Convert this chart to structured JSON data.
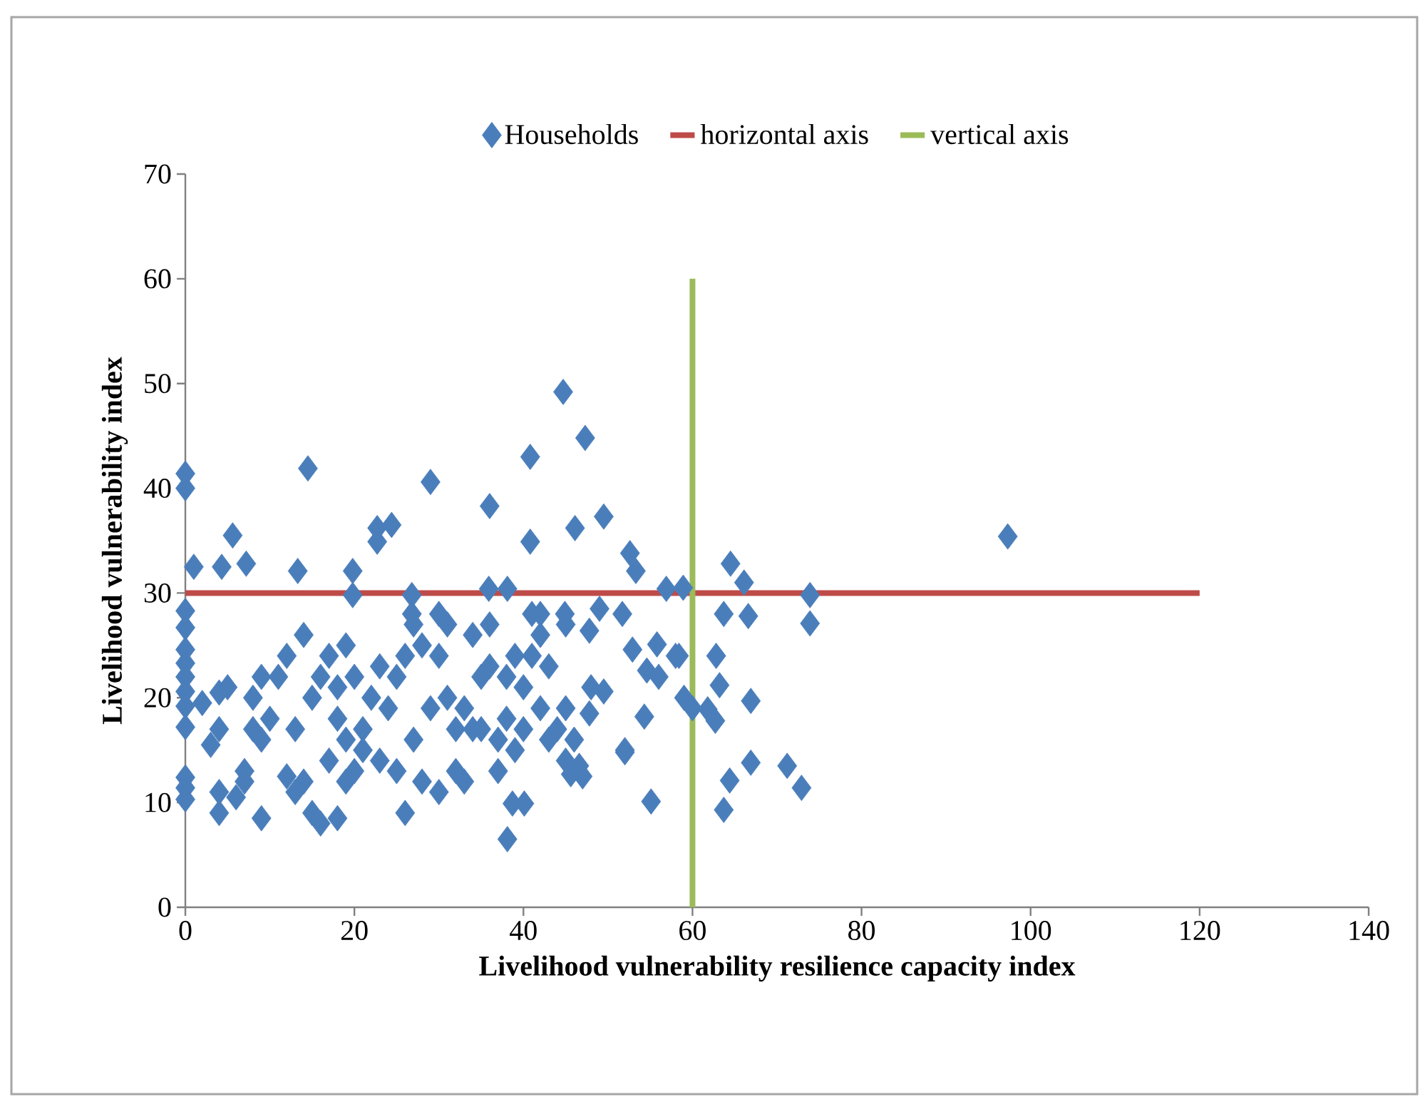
{
  "chart_data": {
    "type": "scatter",
    "xlabel": "Livelihood vulnerability  resilience capacity index",
    "ylabel": "Livelihood vulnerability  index",
    "xlim": [
      0,
      140
    ],
    "ylim": [
      0,
      70
    ],
    "xticks": [
      0,
      20,
      40,
      60,
      80,
      100,
      120,
      140
    ],
    "yticks": [
      0,
      10,
      20,
      30,
      40,
      50,
      60,
      70
    ],
    "legend": "top",
    "grid": false,
    "series": [
      {
        "name": "Households",
        "color": "#4a7ebb",
        "marker": "diamond",
        "x": [
          0,
          0,
          0,
          0,
          0,
          0,
          0,
          0,
          0,
          0,
          0,
          0,
          0,
          1,
          4.3,
          7.2,
          5.6,
          13.3,
          14.5,
          19.8,
          19.8,
          22.7,
          24.4,
          22.7,
          26.8,
          26.8,
          29,
          44.7,
          47.3,
          40.8,
          36,
          46.1,
          49.5,
          40.8,
          52.6,
          53.3,
          56.9,
          58.9,
          35.9,
          38.1,
          51.7,
          49,
          44.9,
          47.8,
          52.9,
          55.8,
          58.4,
          54.6,
          49.5,
          47.8,
          54.3,
          52,
          55.1,
          38.1,
          38.7,
          40.1,
          45.6,
          46.6,
          97.3,
          64.5,
          66.1,
          73.9,
          63.7,
          66.6,
          73.9,
          62.8,
          63.2,
          61.8,
          62.7,
          66.9,
          66.9,
          64.4,
          71.2,
          72.9,
          63.7,
          2,
          3,
          4,
          4,
          5,
          4,
          4,
          6,
          7,
          7,
          8,
          8,
          9,
          9,
          9,
          10,
          11,
          12,
          12,
          13,
          13,
          14,
          14,
          15,
          15,
          16,
          16,
          17,
          17,
          18,
          18,
          18,
          19,
          19,
          19,
          20,
          20,
          21,
          21,
          22,
          23,
          23,
          24,
          25,
          25,
          26,
          26,
          27,
          27,
          28,
          28,
          29,
          30,
          30,
          31,
          31,
          32,
          32,
          33,
          33,
          34,
          34,
          35,
          35,
          36,
          36,
          37,
          37,
          38,
          38,
          39,
          39,
          40,
          40,
          41,
          41,
          42,
          42,
          43,
          43,
          44,
          45,
          45,
          47,
          46,
          48,
          52,
          56,
          58,
          59,
          60,
          30,
          42,
          45
        ],
        "values": [
          41.4,
          40,
          28.3,
          26.7,
          24.6,
          23.3,
          22,
          20.6,
          19.2,
          17.2,
          12.4,
          11.4,
          10.3,
          32.5,
          32.5,
          32.8,
          35.5,
          32.1,
          41.9,
          32.1,
          29.8,
          36.2,
          36.5,
          34.9,
          29.8,
          28,
          40.6,
          49.2,
          44.8,
          43,
          38.3,
          36.2,
          37.3,
          34.9,
          33.8,
          32.1,
          30.4,
          30.5,
          30.4,
          30.4,
          28,
          28.5,
          28,
          26.4,
          24.6,
          25.1,
          24,
          22.6,
          20.6,
          18.5,
          18.2,
          14.8,
          10.1,
          6.5,
          9.9,
          9.9,
          12.7,
          13.5,
          35.4,
          32.8,
          31,
          29.8,
          28,
          27.8,
          27.1,
          24,
          21.2,
          18.9,
          17.8,
          19.7,
          13.8,
          12.1,
          13.5,
          11.4,
          9.3,
          19.5,
          15.5,
          17,
          20.5,
          21,
          11,
          9,
          10.5,
          13,
          12,
          20,
          17,
          22,
          16,
          8.5,
          18,
          22,
          24,
          12.5,
          17,
          11,
          26,
          12,
          20,
          9,
          22,
          8,
          24,
          14,
          21,
          18,
          8.5,
          25,
          16,
          12,
          22,
          13,
          17,
          15,
          20,
          23,
          14,
          19,
          13,
          22,
          24,
          9,
          16,
          27,
          12,
          25,
          19,
          11,
          24,
          20,
          27,
          17,
          13,
          19,
          12,
          17,
          26,
          22,
          17,
          27,
          23,
          16,
          13,
          22,
          18,
          15,
          24,
          21,
          17,
          24,
          28,
          19,
          26,
          16,
          23,
          17,
          14,
          19,
          12.5,
          16,
          21,
          15,
          22,
          24,
          20,
          19,
          28,
          28,
          27
        ]
      },
      {
        "name": "horizontal axis",
        "type": "line",
        "color": "#be4b48",
        "marker": "none",
        "x": [
          0,
          120
        ],
        "values": [
          30,
          30
        ]
      },
      {
        "name": "vertical axis",
        "type": "line",
        "color": "#9bbb59",
        "marker": "none",
        "x": [
          60,
          60
        ],
        "values": [
          0,
          60
        ]
      }
    ]
  }
}
